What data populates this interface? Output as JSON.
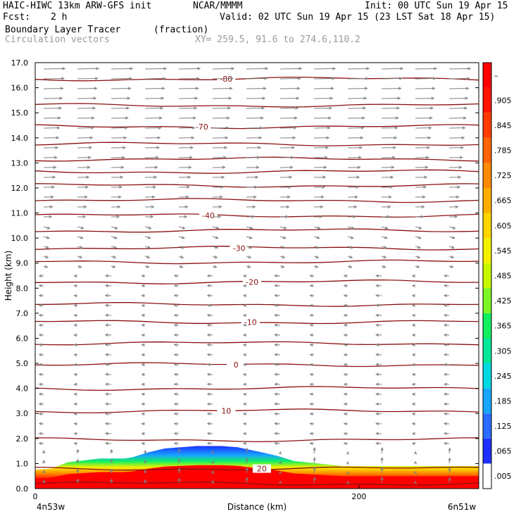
{
  "header": {
    "model": "HAIC-HIWC 13km ARW-GFS init",
    "org": "NCAR/MMMM",
    "init": "Init: 00 UTC Sun 19 Apr 15",
    "fcst_label": "Fcst:",
    "fcst_value": "2 h",
    "valid": "Valid: 02 UTC Sun 19 Apr 15 (23 LST Sat 18 Apr 15)",
    "field": "Boundary Layer Tracer",
    "field_units": "(fraction)",
    "vectors": "Circulation vectors",
    "xy": "XY= 259.5, 91.6 to 274.6,110.2"
  },
  "colorbar": {
    "labels": [
      ".005",
      ".065",
      ".125",
      ".185",
      ".245",
      ".305",
      ".365",
      ".425",
      ".485",
      ".545",
      ".605",
      ".665",
      ".725",
      ".785",
      ".845",
      ".905",
      "–"
    ],
    "colors": [
      "#ffffff",
      "#1c30ff",
      "#2c6bff",
      "#18a6ff",
      "#00d9e0",
      "#00e89c",
      "#10f060",
      "#7cf524",
      "#c8f800",
      "#f4f000",
      "#ffd400",
      "#ffae00",
      "#ff8a00",
      "#ff6400",
      "#ff3c00",
      "#ff1400",
      "#ff0000"
    ]
  },
  "colors": {
    "contour": "#8b1010",
    "vector": "#808080",
    "axis": "#000000"
  },
  "chart_data": {
    "type": "cross-section",
    "ylabel": "Height (km)",
    "xlabel": "Distance (km)",
    "x_ticks": [
      "0",
      "200"
    ],
    "x_endpoints": [
      "4n53w",
      "6n51w"
    ],
    "ylim": [
      0,
      17
    ],
    "xlim": [
      0,
      274
    ],
    "y_ticks": [
      "0.0",
      "1.0",
      "2.0",
      "3.0",
      "4.0",
      "5.0",
      "6.0",
      "7.0",
      "8.0",
      "9.0",
      "10.0",
      "11.0",
      "12.0",
      "13.0",
      "14.0",
      "15.0",
      "16.0",
      "17.0"
    ],
    "temperature_contours": [
      {
        "label": "20",
        "height_km": 0.8,
        "label_x_km": 140
      },
      {
        "label": "10",
        "height_km": 3.1,
        "label_x_km": 118
      },
      {
        "label": "0",
        "height_km": 4.95,
        "label_x_km": 124
      },
      {
        "label": "-10",
        "height_km": 6.65,
        "label_x_km": 133
      },
      {
        "label": "-20",
        "height_km": 8.25,
        "label_x_km": 134
      },
      {
        "label": "-30",
        "height_km": 9.6,
        "label_x_km": 126
      },
      {
        "label": "-40",
        "height_km": 10.9,
        "label_x_km": 107
      },
      {
        "label": "-70",
        "height_km": 14.45,
        "label_x_km": 103
      },
      {
        "label": "-80",
        "height_km": 16.35,
        "label_x_km": 118
      }
    ],
    "unlabeled_contour_heights_km": [
      0.2,
      1.95,
      4.0,
      5.8,
      7.35,
      9.05,
      10.3,
      11.5,
      12.1,
      12.65,
      13.15,
      13.75,
      15.3
    ],
    "boundary_layer_tracer": {
      "top_heights_km": [
        [
          0,
          0.75
        ],
        [
          10,
          0.8
        ],
        [
          20,
          1.05
        ],
        [
          40,
          1.2
        ],
        [
          55,
          1.2
        ],
        [
          60,
          1.25
        ],
        [
          70,
          1.45
        ],
        [
          80,
          1.6
        ],
        [
          90,
          1.65
        ],
        [
          100,
          1.7
        ],
        [
          115,
          1.7
        ],
        [
          125,
          1.65
        ],
        [
          140,
          1.45
        ],
        [
          150,
          1.3
        ],
        [
          160,
          1.1
        ],
        [
          175,
          1.0
        ],
        [
          190,
          0.9
        ],
        [
          274,
          0.9
        ]
      ],
      "core_value": 0.905
    }
  }
}
